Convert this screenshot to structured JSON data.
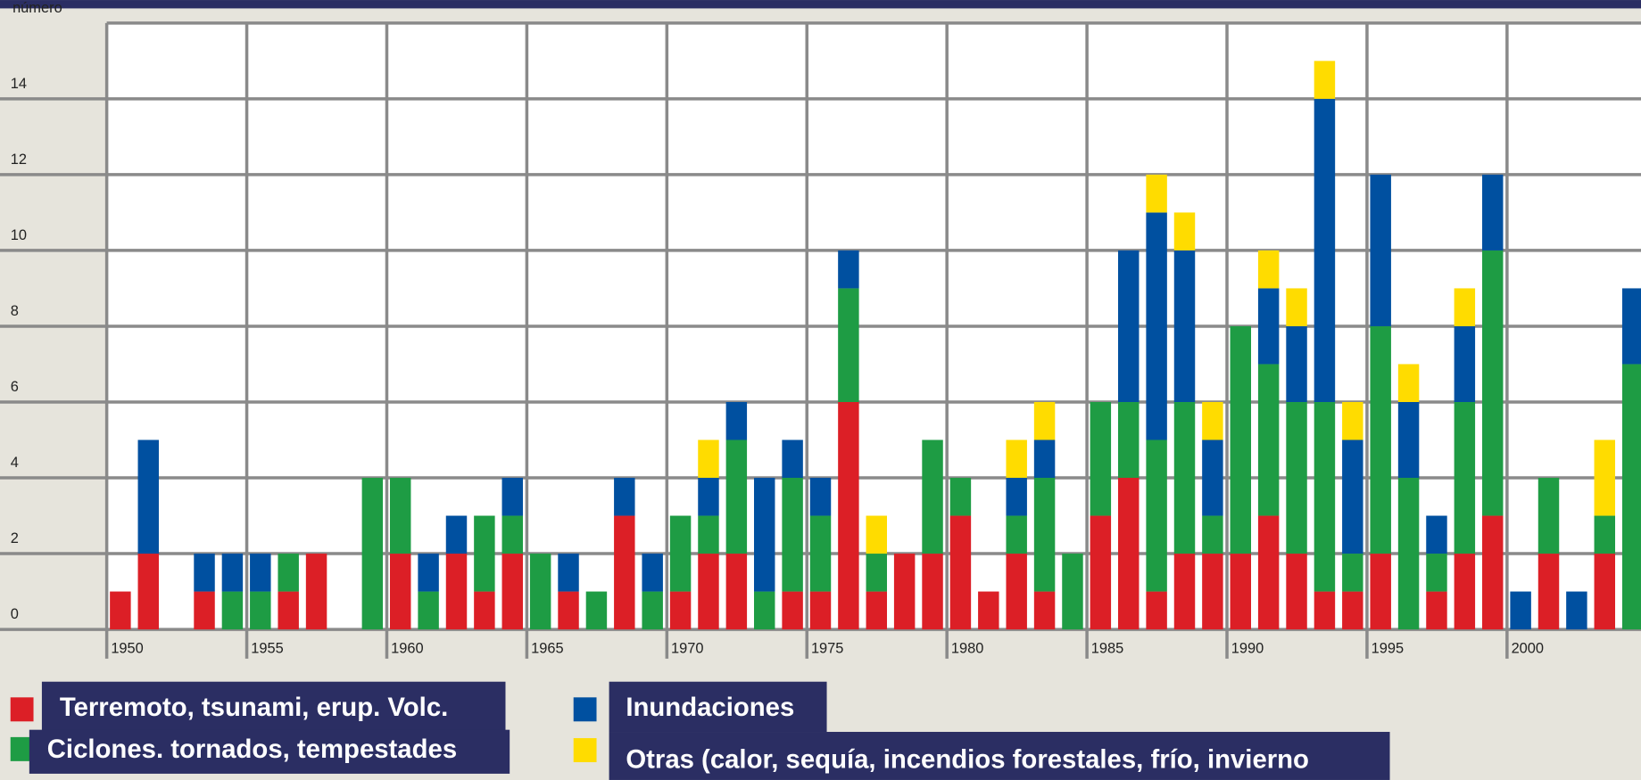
{
  "chart_data": {
    "type": "stacked-bar",
    "y_label": "número",
    "categories": [
      "1950",
      null,
      null,
      null,
      null,
      "1955",
      null,
      null,
      null,
      null,
      "1960",
      null,
      null,
      null,
      null,
      "1965",
      null,
      null,
      null,
      null,
      "1970",
      null,
      null,
      null,
      null,
      "1975",
      null,
      null,
      null,
      null,
      "1980",
      null,
      null,
      null,
      null,
      "1985",
      null,
      null,
      null,
      null,
      "1990",
      null,
      null,
      null,
      null,
      "1995",
      null,
      null,
      null,
      null,
      "2000",
      null,
      null,
      null,
      null
    ],
    "series": [
      {
        "name": "Terremoto, tsunami, erup. Volc.",
        "color": "#dc1f26",
        "values": [
          1,
          2,
          0,
          1,
          0,
          0,
          1,
          2,
          0,
          0,
          2,
          0,
          2,
          1,
          2,
          0,
          1,
          0,
          3,
          0,
          1,
          2,
          2,
          0,
          1,
          1,
          6,
          1,
          2,
          2,
          3,
          1,
          2,
          1,
          0,
          3,
          4,
          1,
          2,
          2,
          2,
          3,
          2,
          1,
          1,
          2,
          0,
          1,
          2,
          3,
          0,
          2,
          0,
          2,
          0
        ]
      },
      {
        "name": "Ciclones. tornados, tempestades",
        "color": "#1e9c44",
        "values": [
          0,
          0,
          0,
          0,
          1,
          1,
          1,
          0,
          0,
          4,
          2,
          1,
          0,
          2,
          1,
          2,
          0,
          1,
          0,
          1,
          2,
          1,
          3,
          1,
          3,
          2,
          3,
          1,
          0,
          3,
          1,
          0,
          1,
          3,
          2,
          3,
          2,
          4,
          4,
          1,
          6,
          4,
          4,
          5,
          1,
          6,
          4,
          1,
          4,
          7,
          0,
          2,
          0,
          1,
          7
        ]
      },
      {
        "name": "Inundaciones",
        "color": "#0050a0",
        "values": [
          0,
          3,
          0,
          1,
          1,
          1,
          0,
          0,
          0,
          0,
          0,
          1,
          1,
          0,
          1,
          0,
          1,
          0,
          1,
          1,
          0,
          1,
          1,
          3,
          1,
          1,
          1,
          0,
          0,
          0,
          0,
          0,
          1,
          1,
          0,
          0,
          4,
          6,
          4,
          2,
          0,
          2,
          2,
          8,
          3,
          4,
          2,
          1,
          2,
          2,
          1,
          0,
          1,
          0,
          2
        ]
      },
      {
        "name": "Otras (calor, sequía, incendios forestales, frío, invierno",
        "color": "#ffdc00",
        "values": [
          0,
          0,
          0,
          0,
          0,
          0,
          0,
          0,
          0,
          0,
          0,
          0,
          0,
          0,
          0,
          0,
          0,
          0,
          0,
          0,
          0,
          1,
          0,
          0,
          0,
          0,
          0,
          1,
          0,
          0,
          0,
          0,
          1,
          1,
          0,
          0,
          0,
          1,
          1,
          1,
          0,
          1,
          1,
          1,
          1,
          0,
          1,
          0,
          1,
          0,
          0,
          0,
          0,
          2,
          0
        ]
      }
    ],
    "ylim": [
      0,
      16
    ],
    "yticks": [
      0,
      2,
      4,
      6,
      8,
      10,
      12,
      14
    ],
    "grid": true
  }
}
